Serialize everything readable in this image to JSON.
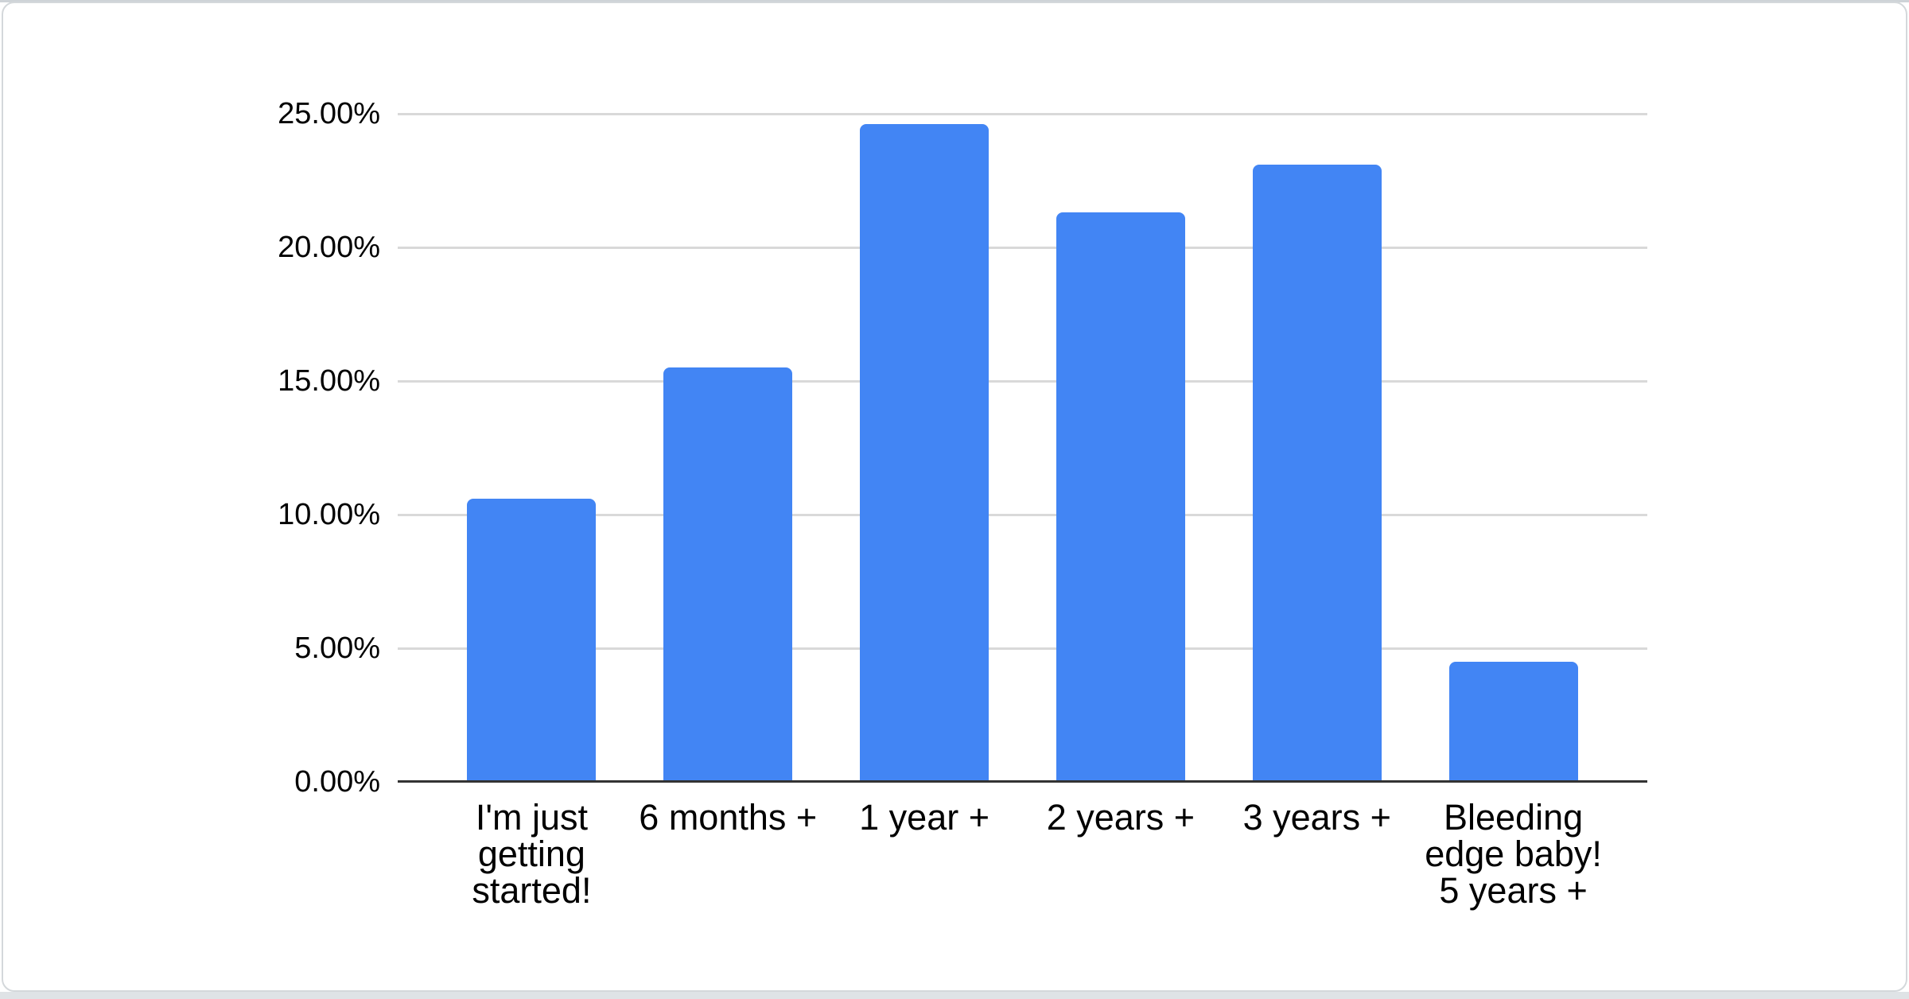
{
  "page": {
    "background_color": "#ffffff",
    "top_edge_color": "#ced3d7",
    "bottom_edge_color": "#dfe3e6",
    "card_background": "#ffffff",
    "card_border_color": "#d4d8db"
  },
  "chart_data": {
    "type": "bar",
    "title": "",
    "categories": [
      "I'm just getting started!",
      "6 months +",
      "1 year +",
      "2 years +",
      "3 years +",
      "Bleeding edge baby! 5 years +"
    ],
    "values": [
      10.6,
      15.5,
      24.6,
      21.3,
      23.1,
      4.5
    ],
    "value_format": "percent",
    "ylim": [
      0,
      25
    ],
    "y_ticks": [
      0,
      5,
      10,
      15,
      20,
      25
    ],
    "y_tick_labels": [
      "0.00%",
      "5.00%",
      "10.00%",
      "15.00%",
      "20.00%",
      "25.00%"
    ],
    "grid": true,
    "legend": "none",
    "bar_color": "#4285F4",
    "gridline_color": "#d9d9d9",
    "axis_line_color": "#333333",
    "text_color": "#000000"
  }
}
